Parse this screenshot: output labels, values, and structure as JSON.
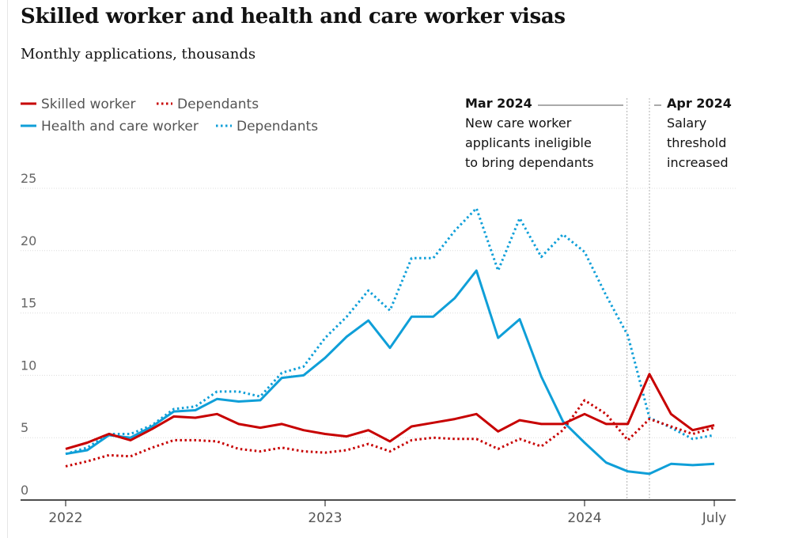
{
  "colors": {
    "skilled": "#c70000",
    "health": "#0f9fd8",
    "grid": "#dcdcdc",
    "axis": "#121212"
  },
  "chart_data": {
    "type": "line",
    "title": "Skilled worker and health and care worker visas",
    "subtitle": "Monthly applications, thousands",
    "ylim": [
      0,
      25
    ],
    "y_ticks": [
      0,
      5,
      10,
      15,
      20,
      25
    ],
    "x_ticks": [
      {
        "label": "2022",
        "month_index": 0
      },
      {
        "label": "2023",
        "month_index": 12
      },
      {
        "label": "2024",
        "month_index": 24
      },
      {
        "label": "July",
        "month_index": 30
      }
    ],
    "x_range": [
      0,
      30
    ],
    "series": [
      {
        "name": "Skilled worker",
        "color_key": "skilled",
        "style": "solid",
        "values": [
          4.1,
          4.6,
          5.3,
          4.8,
          5.7,
          6.7,
          6.6,
          6.9,
          6.1,
          5.8,
          6.1,
          5.6,
          5.3,
          5.1,
          5.6,
          4.7,
          5.9,
          6.2,
          6.5,
          6.9,
          5.5,
          6.4,
          6.1,
          6.1,
          6.9,
          6.1,
          6.1,
          10.1,
          6.9,
          5.6,
          6.0
        ]
      },
      {
        "name": "Dependants",
        "color_key": "skilled",
        "style": "dotted",
        "values": [
          2.7,
          3.1,
          3.6,
          3.5,
          4.2,
          4.8,
          4.8,
          4.7,
          4.1,
          3.9,
          4.2,
          3.9,
          3.8,
          4.0,
          4.5,
          3.9,
          4.8,
          5.0,
          4.9,
          4.9,
          4.1,
          4.9,
          4.3,
          5.6,
          8.0,
          6.9,
          4.8,
          6.5,
          5.9,
          5.3,
          5.8
        ]
      },
      {
        "name": "Health and care worker",
        "color_key": "health",
        "style": "solid",
        "values": [
          3.7,
          4.0,
          5.2,
          5.0,
          5.9,
          7.1,
          7.2,
          8.1,
          7.9,
          8.0,
          9.8,
          10.0,
          11.4,
          13.1,
          14.4,
          12.2,
          14.7,
          14.7,
          16.2,
          18.4,
          13.0,
          14.5,
          9.9,
          6.3,
          4.6,
          3.0,
          2.3,
          2.1,
          2.9,
          2.8,
          2.9
        ]
      },
      {
        "name": "Dependants",
        "color_key": "health",
        "style": "dotted",
        "values": [
          3.7,
          4.2,
          5.3,
          5.3,
          6.0,
          7.3,
          7.5,
          8.7,
          8.7,
          8.3,
          10.2,
          10.7,
          13.0,
          14.7,
          16.8,
          15.2,
          19.4,
          19.4,
          21.6,
          23.4,
          18.4,
          22.6,
          19.5,
          21.3,
          19.9,
          16.4,
          13.2,
          6.6,
          5.8,
          4.9,
          5.2
        ]
      }
    ],
    "annotations": [
      {
        "id": "mar2024",
        "head": "Mar 2024",
        "lines": [
          "New care worker",
          "applicants ineligible",
          "to bring dependants"
        ],
        "month_index": 26
      },
      {
        "id": "apr2024",
        "head": "Apr 2024",
        "lines": [
          "Salary",
          "threshold",
          "increased"
        ],
        "month_index": 27
      }
    ]
  }
}
